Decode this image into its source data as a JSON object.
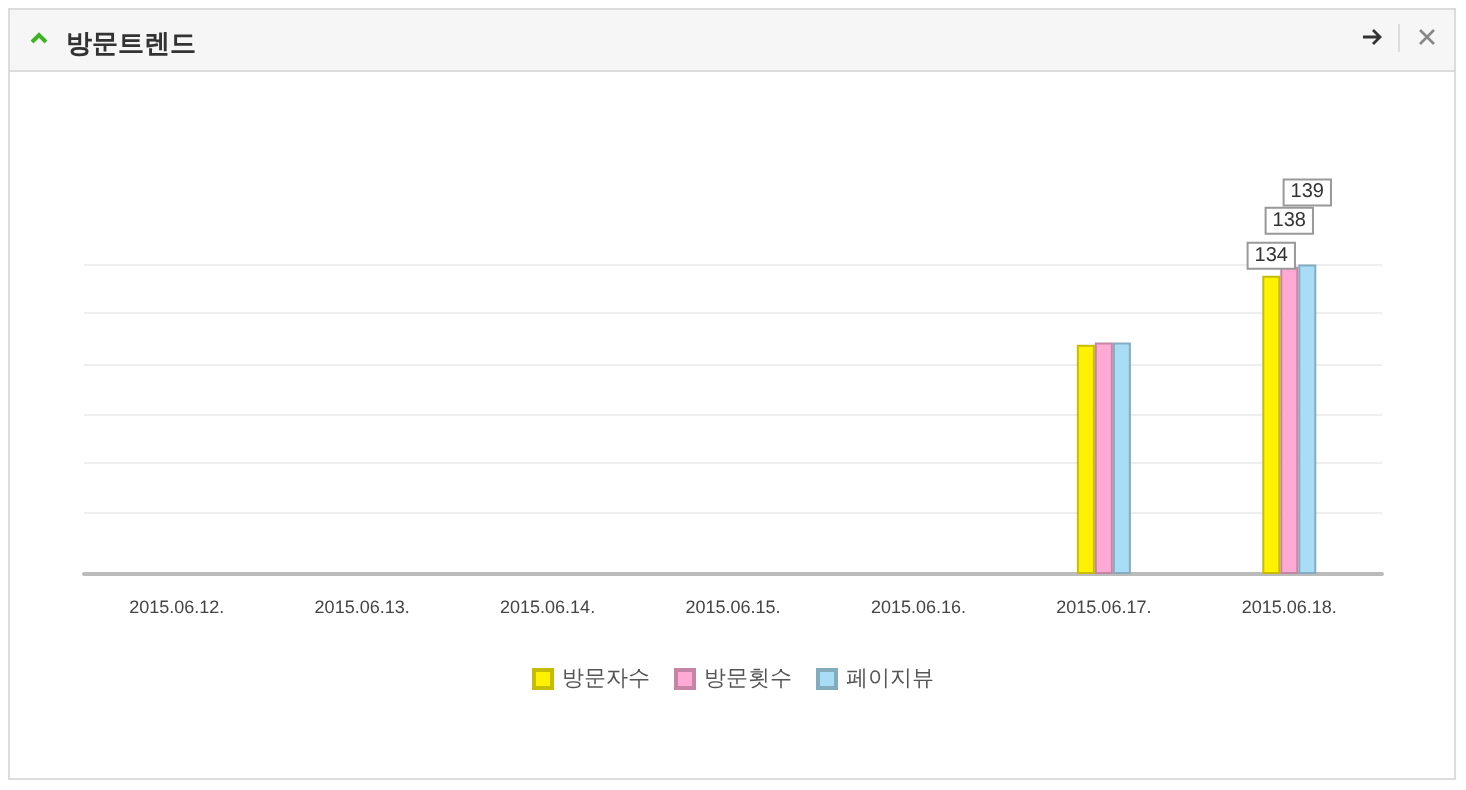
{
  "chart_data": {
    "type": "bar",
    "title": "방문트렌드",
    "categories": [
      "2015.06.12.",
      "2015.06.13.",
      "2015.06.14.",
      "2015.06.15.",
      "2015.06.16.",
      "2015.06.17.",
      "2015.06.18."
    ],
    "series": [
      {
        "name": "방문자수",
        "color": "#fff200",
        "values": [
          0,
          0,
          0,
          0,
          0,
          103,
          134
        ],
        "value_labels": [
          null,
          null,
          null,
          null,
          null,
          null,
          "134"
        ]
      },
      {
        "name": "방문횟수",
        "color": "#ffaad5",
        "values": [
          0,
          0,
          0,
          0,
          0,
          104,
          138
        ],
        "value_labels": [
          null,
          null,
          null,
          null,
          null,
          null,
          "138"
        ]
      },
      {
        "name": "페이지뷰",
        "color": "#a8ddf5",
        "values": [
          0,
          0,
          0,
          0,
          0,
          104,
          139
        ],
        "value_labels": [
          null,
          null,
          null,
          null,
          null,
          null,
          "139"
        ]
      }
    ],
    "yticks": [
      {
        "value": 28,
        "label": null
      },
      {
        "value": 50,
        "label": null
      },
      {
        "value": 72,
        "label": null
      },
      {
        "value": 94,
        "label": null
      },
      {
        "value": 117,
        "label": null
      },
      {
        "value": 139,
        "label": null
      }
    ],
    "tick_labels": "x",
    "grid": "y",
    "legend": "bottom"
  }
}
